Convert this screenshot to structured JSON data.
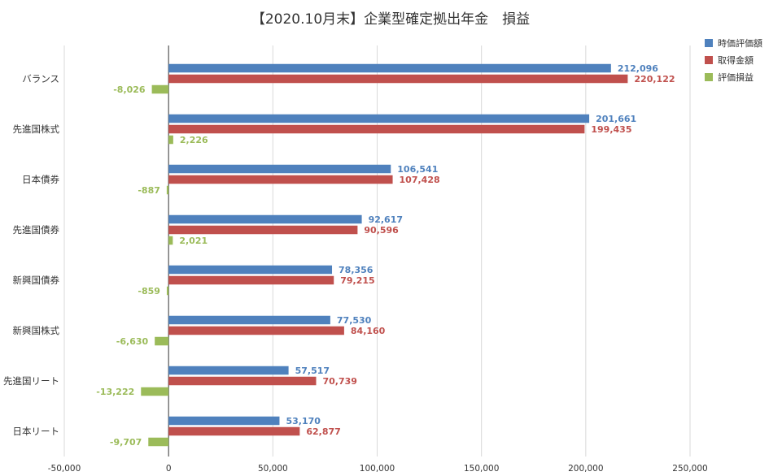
{
  "chart_data": {
    "type": "bar",
    "orientation": "horizontal",
    "title": "【2020.10月末】企業型確定拠出年金　損益",
    "categories": [
      "バランス",
      "先進国株式",
      "日本債券",
      "先進国債券",
      "新興国債券",
      "新興国株式",
      "先進国リート",
      "日本リート"
    ],
    "series": [
      {
        "name": "時価評価額",
        "color": "#4f81bd",
        "values": [
          212096,
          201661,
          106541,
          92617,
          78356,
          77530,
          57517,
          53170
        ],
        "labels": [
          "212,096",
          "201,661",
          "106,541",
          "92,617",
          "78,356",
          "77,530",
          "57,517",
          "53,170"
        ]
      },
      {
        "name": "取得金額",
        "color": "#c0504d",
        "values": [
          220122,
          199435,
          107428,
          90596,
          79215,
          84160,
          70739,
          62877
        ],
        "labels": [
          "220,122",
          "199,435",
          "107,428",
          "90,596",
          "79,215",
          "84,160",
          "70,739",
          "62,877"
        ]
      },
      {
        "name": "評価損益",
        "color": "#9bbb59",
        "values": [
          -8026,
          2226,
          -887,
          2021,
          -859,
          -6630,
          -13222,
          -9707
        ],
        "labels": [
          "-8,026",
          "2,226",
          "-887",
          "2,021",
          "-859",
          "-6,630",
          "-13,222",
          "-9,707"
        ]
      }
    ],
    "xlim": [
      -50000,
      250000
    ],
    "xticks": [
      -50000,
      0,
      50000,
      100000,
      150000,
      200000,
      250000
    ],
    "xtick_labels": [
      "-50,000",
      "0",
      "50,000",
      "100,000",
      "150,000",
      "200,000",
      "250,000"
    ],
    "xlabel": "",
    "ylabel": "",
    "grid": true,
    "legend_position": "top-right",
    "data_labels": true
  }
}
